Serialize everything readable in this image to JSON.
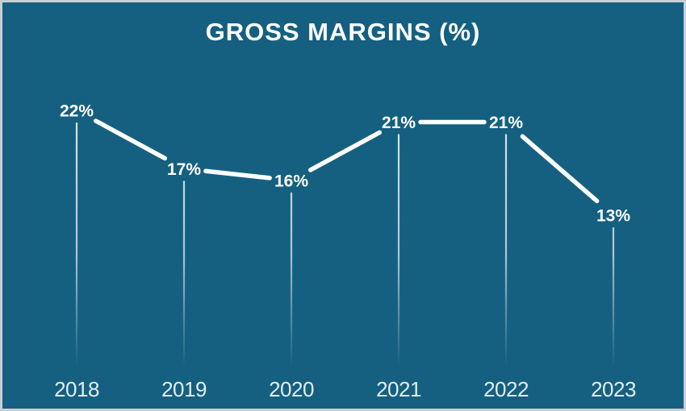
{
  "window": {
    "border_color": "#C9CFD4"
  },
  "chart_data": {
    "type": "line",
    "title": "GROSS MARGINS (%)",
    "categories": [
      "2018",
      "2019",
      "2020",
      "2021",
      "2022",
      "2023"
    ],
    "values": [
      22,
      17,
      16,
      21,
      21,
      13
    ],
    "data_labels": [
      "22%",
      "17%",
      "16%",
      "21%",
      "21%",
      "13%"
    ],
    "xlabel": "",
    "ylabel": "",
    "ylim": [
      0,
      31
    ],
    "grid": false,
    "legend": "none",
    "notes": "label-gapped white line, vertical drop lines fading toward baseline, no axis lines",
    "style": {
      "background": "#156080",
      "line_color": "#FFFFFF",
      "data_label_color": "#FFFFFF",
      "axis_label_color": "#E3EDF2",
      "title_color": "#FFFFFF",
      "drop_lines": true
    }
  }
}
